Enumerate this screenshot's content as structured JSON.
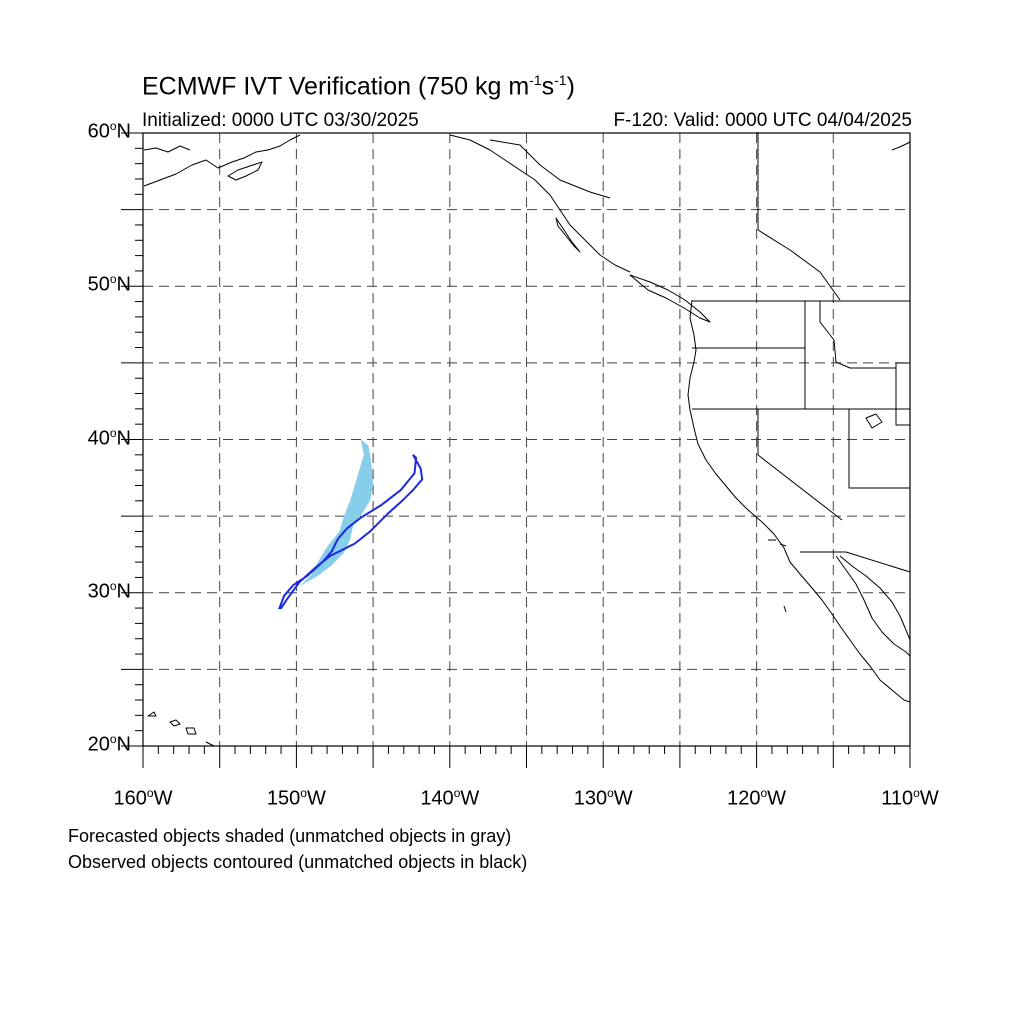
{
  "header": {
    "title_main": "ECMWF IVT Verification (750 kg m",
    "title_exp1": "-1",
    "title_mid": "s",
    "title_exp2": "-1",
    "title_end": ")",
    "initialized": "Initialized: 0000 UTC 03/30/2025",
    "valid": "F-120: Valid: 0000 UTC 04/04/2025"
  },
  "axes": {
    "degree_sign": "o",
    "lat_labels": [
      {
        "value": "60",
        "hemi": "N"
      },
      {
        "value": "50",
        "hemi": "N"
      },
      {
        "value": "40",
        "hemi": "N"
      },
      {
        "value": "30",
        "hemi": "N"
      },
      {
        "value": "20",
        "hemi": "N"
      }
    ],
    "lon_labels": [
      {
        "value": "160",
        "hemi": "W"
      },
      {
        "value": "150",
        "hemi": "W"
      },
      {
        "value": "140",
        "hemi": "W"
      },
      {
        "value": "130",
        "hemi": "W"
      },
      {
        "value": "120",
        "hemi": "W"
      },
      {
        "value": "110",
        "hemi": "W"
      }
    ],
    "lat_range": [
      20,
      60
    ],
    "lon_range": [
      -160,
      -110
    ],
    "grid_interval_deg": 5
  },
  "map": {
    "projection": "cylindrical equidistant",
    "forecast_object": {
      "style": "shaded",
      "color": "#87ceeb",
      "lonlat": [
        [
          -149.8,
          30.4
        ],
        [
          -149.0,
          31.2
        ],
        [
          -148.6,
          32.0
        ],
        [
          -148.0,
          33.0
        ],
        [
          -147.2,
          34.0
        ],
        [
          -146.9,
          35.0
        ],
        [
          -146.5,
          36.0
        ],
        [
          -146.2,
          37.0
        ],
        [
          -145.9,
          38.0
        ],
        [
          -145.6,
          39.0
        ],
        [
          -145.8,
          40.0
        ],
        [
          -145.3,
          39.6
        ],
        [
          -145.1,
          38.3
        ],
        [
          -145.0,
          37.0
        ],
        [
          -145.2,
          36.0
        ],
        [
          -145.7,
          35.2
        ],
        [
          -146.3,
          34.4
        ],
        [
          -146.5,
          33.5
        ],
        [
          -146.9,
          32.6
        ],
        [
          -147.7,
          31.8
        ],
        [
          -148.6,
          31.1
        ],
        [
          -149.3,
          30.7
        ]
      ]
    },
    "observed_object": {
      "style": "contoured",
      "color": "#1b2be0",
      "lonlat": [
        [
          -151.1,
          29.0
        ],
        [
          -150.8,
          29.8
        ],
        [
          -150.2,
          30.5
        ],
        [
          -149.3,
          31.1
        ],
        [
          -148.3,
          32.0
        ],
        [
          -147.7,
          32.7
        ],
        [
          -147.3,
          33.5
        ],
        [
          -146.7,
          34.2
        ],
        [
          -145.8,
          34.9
        ],
        [
          -144.5,
          35.7
        ],
        [
          -143.2,
          36.7
        ],
        [
          -142.3,
          37.8
        ],
        [
          -142.2,
          38.8
        ],
        [
          -142.4,
          39.0
        ],
        [
          -141.9,
          38.1
        ],
        [
          -141.8,
          37.4
        ],
        [
          -142.4,
          36.7
        ],
        [
          -143.1,
          36.0
        ],
        [
          -144.0,
          35.2
        ],
        [
          -145.2,
          34.0
        ],
        [
          -146.2,
          33.2
        ],
        [
          -147.8,
          32.4
        ],
        [
          -148.8,
          31.6
        ],
        [
          -149.8,
          30.7
        ],
        [
          -150.6,
          29.6
        ],
        [
          -151.0,
          29.0
        ]
      ]
    },
    "coastline_color": "#000000"
  },
  "legend": {
    "line1": "Forecasted objects shaded (unmatched objects in gray)",
    "line2": "Observed objects contoured (unmatched objects in black)"
  }
}
